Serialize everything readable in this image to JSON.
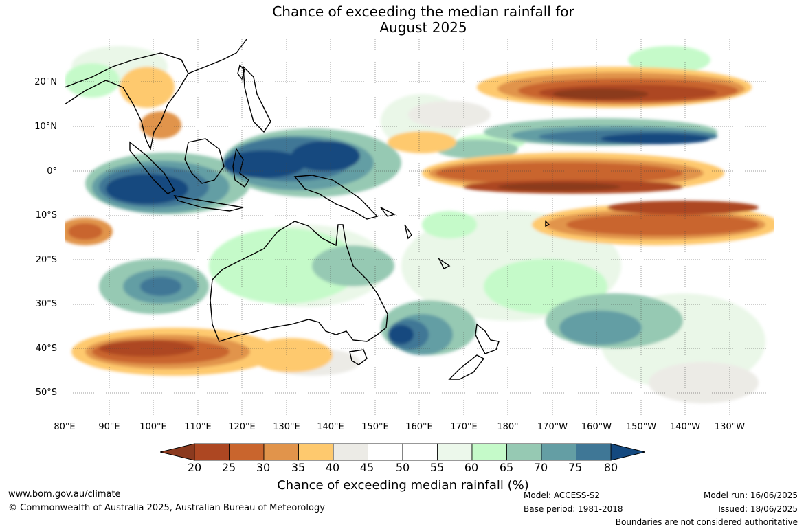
{
  "title": {
    "line1": "Chance of exceeding the median rainfall for",
    "line2": "August 2025"
  },
  "map": {
    "lat_labels": [
      "20°N",
      "10°N",
      "0°",
      "10°S",
      "20°S",
      "30°S",
      "40°S",
      "50°S"
    ],
    "lon_labels": [
      "80°E",
      "90°E",
      "100°E",
      "110°E",
      "120°E",
      "130°E",
      "140°E",
      "150°E",
      "160°E",
      "170°E",
      "180°",
      "170°W",
      "160°W",
      "150°W",
      "140°W",
      "130°W"
    ],
    "lat_range": [
      -55,
      30
    ],
    "lon_range": [
      80,
      240
    ],
    "gridlines": true
  },
  "colorbar": {
    "ticks": [
      "20",
      "25",
      "30",
      "35",
      "40",
      "45",
      "50",
      "55",
      "60",
      "65",
      "70",
      "75",
      "80"
    ],
    "low_color": "#8b3a1f",
    "high_color": "#14497f",
    "colors": [
      "#ad4722",
      "#c9652d",
      "#e1944b",
      "#fec96e",
      "#ecebe6",
      "#ffffff",
      "#ffffff",
      "#ecf8eb",
      "#c5fac9",
      "#96c9b3",
      "#649ea4",
      "#3f7796"
    ],
    "title": "Chance of exceeding median rainfall (%)"
  },
  "footer": {
    "website": "www.bom.gov.au/climate",
    "copyright": "© Commonwealth of Australia 2025, Australian Bureau of Meteorology",
    "model": "Model: ACCESS-S2",
    "base_period": "Base period: 1981-2018",
    "model_run": "Model run: 16/06/2025",
    "issued": "Issued: 18/06/2025",
    "disclaimer": "Boundaries are not considered authoritative"
  }
}
